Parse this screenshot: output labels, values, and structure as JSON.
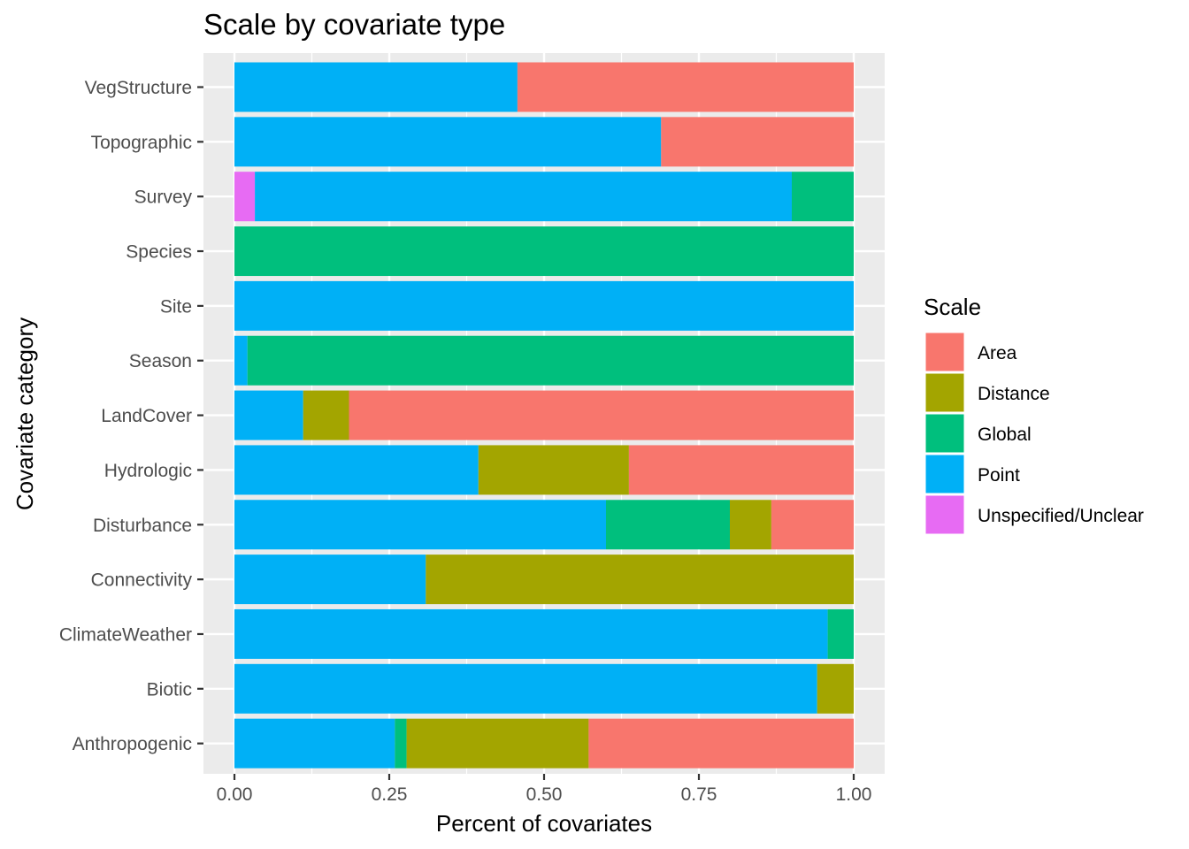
{
  "chart_data": {
    "type": "bar",
    "orientation": "horizontal",
    "stacked": true,
    "title": "Scale by covariate type",
    "xlabel": "Percent of covariates",
    "ylabel": "Covariate category",
    "xlim": [
      0,
      1
    ],
    "xticks": [
      "0.00",
      "0.25",
      "0.50",
      "0.75",
      "1.00"
    ],
    "grid": true,
    "legend_position": "right",
    "legend_title": "Scale",
    "categories": [
      "VegStructure",
      "Topographic",
      "Survey",
      "Species",
      "Site",
      "Season",
      "LandCover",
      "Hydrologic",
      "Disturbance",
      "Connectivity",
      "ClimateWeather",
      "Biotic",
      "Anthropogenic"
    ],
    "stack_order": [
      "Unspecified/Unclear",
      "Point",
      "Global",
      "Distance",
      "Area"
    ],
    "legend_order": [
      "Area",
      "Distance",
      "Global",
      "Point",
      "Unspecified/Unclear"
    ],
    "series": [
      {
        "name": "Area",
        "color": "#F8766D",
        "values": [
          0.543,
          0.311,
          0,
          0,
          0,
          0,
          0.815,
          0.363,
          0.133,
          0,
          0,
          0,
          0.428
        ]
      },
      {
        "name": "Distance",
        "color": "#A3A500",
        "values": [
          0,
          0,
          0,
          0,
          0,
          0,
          0.074,
          0.243,
          0.067,
          0.691,
          0,
          0.059,
          0.294
        ]
      },
      {
        "name": "Global",
        "color": "#00BF7D",
        "values": [
          0,
          0,
          0.1,
          1,
          0,
          0.979,
          0,
          0,
          0.2,
          0,
          0.042,
          0,
          0.019
        ]
      },
      {
        "name": "Point",
        "color": "#00B0F6",
        "values": [
          0.457,
          0.689,
          0.867,
          0,
          1,
          0.021,
          0.111,
          0.394,
          0.6,
          0.309,
          0.958,
          0.941,
          0.259
        ]
      },
      {
        "name": "Unspecified/Unclear",
        "color": "#E76BF3",
        "values": [
          0,
          0,
          0.033,
          0,
          0,
          0,
          0,
          0,
          0,
          0,
          0,
          0,
          0
        ]
      }
    ]
  }
}
